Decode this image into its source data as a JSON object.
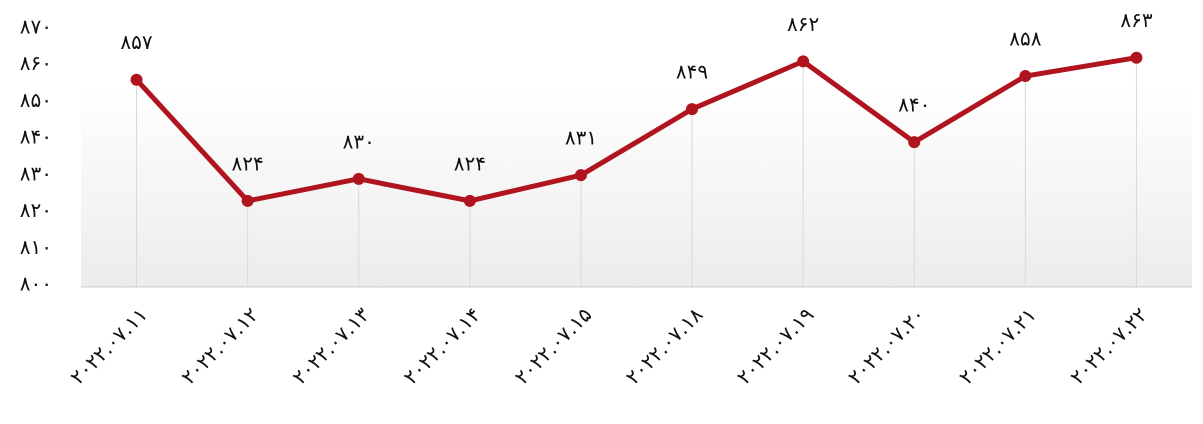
{
  "chart_data": {
    "type": "line",
    "categories": [
      "۲۰۲۲.۰۷.۱۱",
      "۲۰۲۲.۰۷.۱۲",
      "۲۰۲۲.۰۷.۱۳",
      "۲۰۲۲.۰۷.۱۴",
      "۲۰۲۲.۰۷.۱۵",
      "۲۰۲۲.۰۷.۱۸",
      "۲۰۲۲.۰۷.۱۹",
      "۲۰۲۲.۰۷.۲۰",
      "۲۰۲۲.۰۷.۲۱",
      "۲۰۲۲.۰۷.۲۲"
    ],
    "series": [
      {
        "color": "#b0141e",
        "values": [
          857,
          824,
          830,
          824,
          831,
          849,
          862,
          840,
          858,
          863
        ],
        "value_labels": [
          "۸۵۷",
          "۸۲۴",
          "۸۳۰",
          "۸۲۴",
          "۸۳۱",
          "۸۴۹",
          "۸۶۲",
          "۸۴۰",
          "۸۵۸",
          "۸۶۳"
        ]
      }
    ],
    "ylim": [
      800,
      870
    ],
    "yticks": [
      {
        "value": 800,
        "label": "۸۰۰"
      },
      {
        "value": 810,
        "label": "۸۱۰"
      },
      {
        "value": 820,
        "label": "۸۲۰"
      },
      {
        "value": 830,
        "label": "۸۳۰"
      },
      {
        "value": 840,
        "label": "۸۴۰"
      },
      {
        "value": 850,
        "label": "۸۵۰"
      },
      {
        "value": 860,
        "label": "۸۶۰"
      },
      {
        "value": 870,
        "label": "۸۷۰"
      }
    ],
    "grid": true
  }
}
